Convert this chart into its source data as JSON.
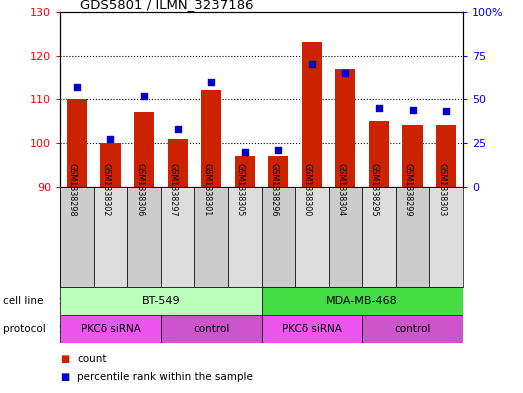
{
  "title": "GDS5801 / ILMN_3237186",
  "samples": [
    "GSM1338298",
    "GSM1338302",
    "GSM1338306",
    "GSM1338297",
    "GSM1338301",
    "GSM1338305",
    "GSM1338296",
    "GSM1338300",
    "GSM1338304",
    "GSM1338295",
    "GSM1338299",
    "GSM1338303"
  ],
  "bar_values": [
    110,
    100,
    107,
    101,
    112,
    97,
    97,
    123,
    117,
    105,
    104,
    104
  ],
  "dot_values": [
    57,
    27,
    52,
    33,
    60,
    20,
    21,
    70,
    65,
    45,
    44,
    43
  ],
  "bar_color": "#cc2200",
  "dot_color": "#0000cc",
  "ylim_left": [
    90,
    130
  ],
  "ylim_right": [
    0,
    100
  ],
  "yticks_left": [
    90,
    100,
    110,
    120,
    130
  ],
  "yticks_right": [
    0,
    25,
    50,
    75,
    100
  ],
  "yticklabels_right": [
    "0",
    "25",
    "50",
    "75",
    "100%"
  ],
  "cell_line_groups": [
    {
      "label": "BT-549",
      "start": 0,
      "end": 6,
      "color": "#bbffbb"
    },
    {
      "label": "MDA-MB-468",
      "start": 6,
      "end": 12,
      "color": "#44dd44"
    }
  ],
  "protocol_groups": [
    {
      "label": "PKCδ siRNA",
      "start": 0,
      "end": 3,
      "color": "#ee55ee"
    },
    {
      "label": "control",
      "start": 3,
      "end": 6,
      "color": "#cc55cc"
    },
    {
      "label": "PKCδ siRNA",
      "start": 6,
      "end": 9,
      "color": "#ee55ee"
    },
    {
      "label": "control",
      "start": 9,
      "end": 12,
      "color": "#cc55cc"
    }
  ],
  "cell_line_label": "cell line",
  "protocol_label": "protocol",
  "legend_count": "count",
  "legend_percentile": "percentile rank within the sample",
  "background_color": "#ffffff",
  "plot_bg_color": "#ffffff",
  "bar_bottom": 90,
  "sample_bg_even": "#cccccc",
  "sample_bg_odd": "#dddddd"
}
